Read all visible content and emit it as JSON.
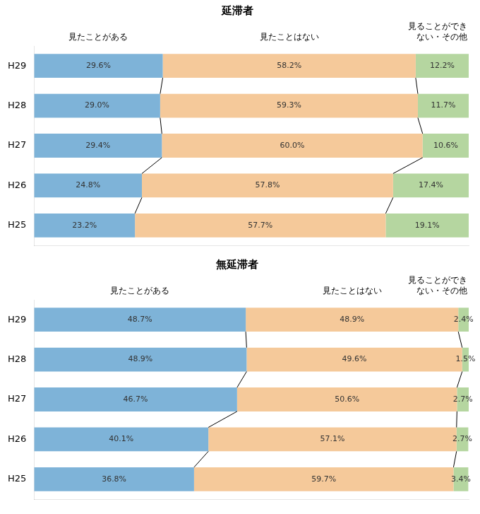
{
  "chart_data": [
    {
      "type": "bar",
      "orientation": "horizontal",
      "stacked": true,
      "title": "延滞者",
      "categories": [
        "H29",
        "H28",
        "H27",
        "H26",
        "H25"
      ],
      "series": [
        {
          "name": "見たことがある",
          "color": "#7eb3d8",
          "values": [
            29.6,
            29.0,
            29.4,
            24.8,
            23.2
          ],
          "value_labels": [
            "29.6%",
            "29.0%",
            "29.4%",
            "24.8%",
            "23.2%"
          ]
        },
        {
          "name": "見たことはない",
          "color": "#f5c99a",
          "values": [
            58.2,
            59.3,
            60.0,
            57.8,
            57.7
          ],
          "value_labels": [
            "58.2%",
            "59.3%",
            "60.0%",
            "57.8%",
            "57.7%"
          ]
        },
        {
          "name": "見ることができ\nない・その他",
          "color": "#b5d6a0",
          "values": [
            12.2,
            11.7,
            10.6,
            17.4,
            19.1
          ],
          "value_labels": [
            "12.2%",
            "11.7%",
            "10.6%",
            "17.4%",
            "19.1%"
          ]
        }
      ],
      "xlim": [
        0,
        100
      ],
      "grid": false,
      "tick_labels": "y",
      "data_labels": true
    },
    {
      "type": "bar",
      "orientation": "horizontal",
      "stacked": true,
      "title": "無延滞者",
      "categories": [
        "H29",
        "H28",
        "H27",
        "H26",
        "H25"
      ],
      "series": [
        {
          "name": "見たことがある",
          "color": "#7eb3d8",
          "values": [
            48.7,
            48.9,
            46.7,
            40.1,
            36.8
          ],
          "value_labels": [
            "48.7%",
            "48.9%",
            "46.7%",
            "40.1%",
            "36.8%"
          ]
        },
        {
          "name": "見たことはない",
          "color": "#f5c99a",
          "values": [
            48.9,
            49.6,
            50.6,
            57.1,
            59.7
          ],
          "value_labels": [
            "48.9%",
            "49.6%",
            "50.6%",
            "57.1%",
            "59.7%"
          ]
        },
        {
          "name": "見ることができ\nない・その他",
          "color": "#b5d6a0",
          "values": [
            2.4,
            1.5,
            2.7,
            2.7,
            3.4
          ],
          "value_labels": [
            "2.4%",
            "1.5%",
            "2.7%",
            "2.7%",
            "3.4%"
          ]
        }
      ],
      "xlim": [
        0,
        100
      ],
      "grid": false,
      "tick_labels": "y",
      "data_labels": true
    }
  ]
}
